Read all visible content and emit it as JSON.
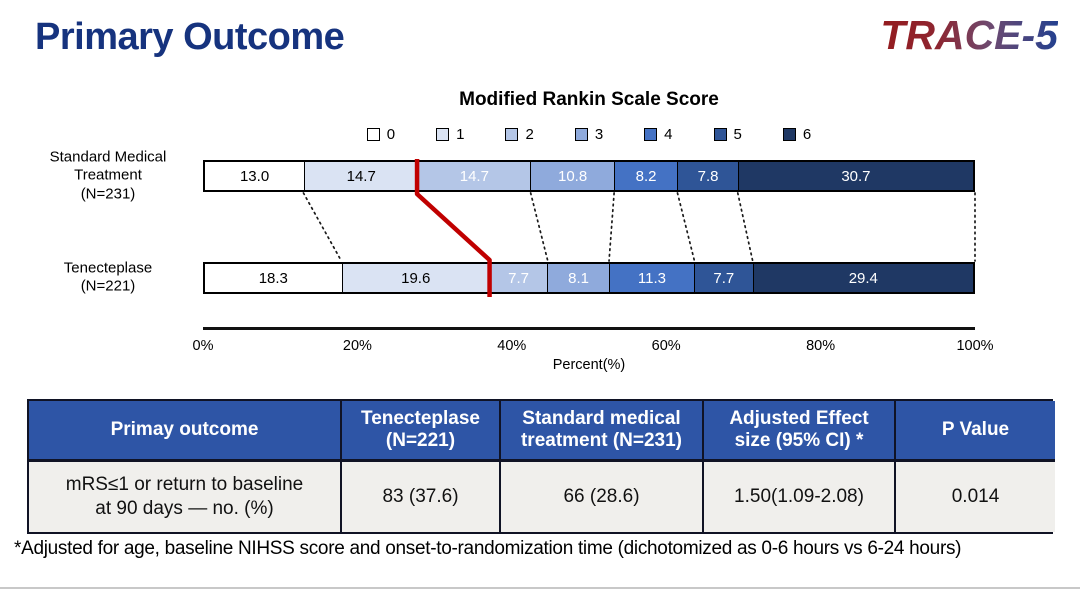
{
  "slide": {
    "title": "Primary Outcome",
    "logo": "TRACE-5",
    "footnote": "*Adjusted for age, baseline NIHSS score and onset-to-randomization time (dichotomized as 0-6 hours vs 6-24 hours)"
  },
  "chart_data": {
    "type": "bar",
    "stacked": true,
    "orientation": "horizontal",
    "title": "Modified Rankin Scale Score",
    "xlabel": "Percent(%)",
    "xlim": [
      0,
      100
    ],
    "x_ticks": [
      "0%",
      "20%",
      "40%",
      "60%",
      "80%",
      "100%"
    ],
    "legend_position": "top",
    "legend": [
      {
        "label": "0",
        "color": "#ffffff"
      },
      {
        "label": "1",
        "color": "#dae3f3"
      },
      {
        "label": "2",
        "color": "#b4c6e7"
      },
      {
        "label": "3",
        "color": "#8faadc"
      },
      {
        "label": "4",
        "color": "#4472c4"
      },
      {
        "label": "5",
        "color": "#2f5597"
      },
      {
        "label": "6",
        "color": "#1f3864"
      }
    ],
    "bars": [
      {
        "label": "Standard Medical\nTreatment\n(N=231)",
        "values": [
          "13.0",
          "14.7",
          "14.7",
          "10.8",
          "8.2",
          "7.8",
          "30.7"
        ]
      },
      {
        "label": "Tenecteplase\n(N=221)",
        "values": [
          "18.3",
          "19.6",
          "7.7",
          "8.1",
          "11.3",
          "7.7",
          "29.4"
        ]
      }
    ],
    "white_text_from_segment": 2,
    "connectors": {
      "dotted_after_segments": [
        0,
        2,
        3,
        4,
        5,
        -1
      ],
      "dotted_color": "#1a1a1a",
      "red_after_segment": 1,
      "red_color": "#c00000"
    }
  },
  "table": {
    "headers": [
      "Primay outcome",
      "Tenecteplase\n(N=221)",
      "Standard medical\ntreatment (N=231)",
      "Adjusted Effect\nsize (95% CI) *",
      "P Value"
    ],
    "rows": [
      [
        "mRS≤1 or return to baseline\nat 90 days — no. (%)",
        "83 (37.6)",
        "66 (28.6)",
        "1.50(1.09-2.08)",
        "0.014"
      ]
    ],
    "header_bg": "#2e55a6",
    "row_bg": "#f0efec"
  }
}
